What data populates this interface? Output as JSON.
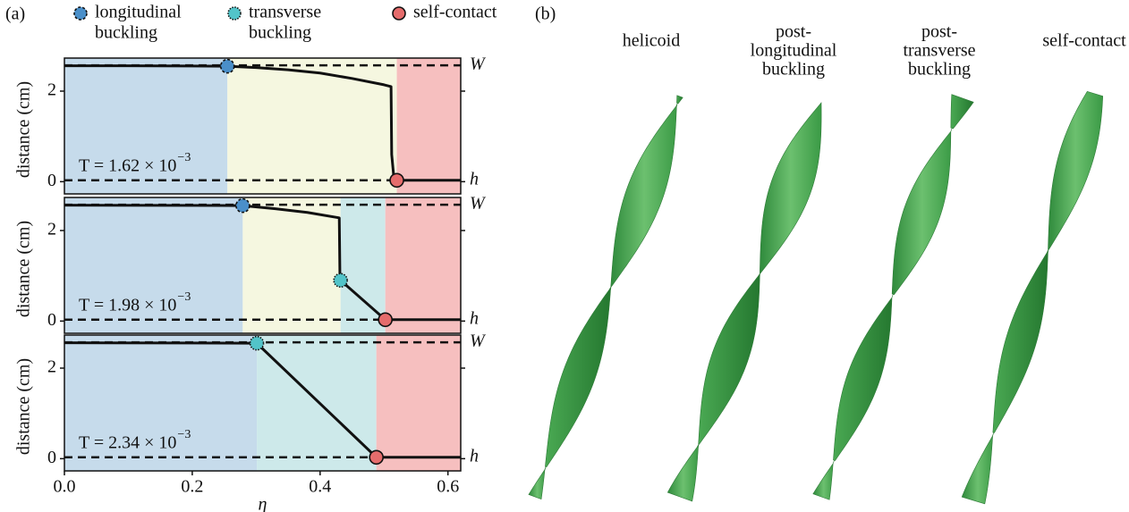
{
  "panel_a_label": "(a)",
  "legend": [
    {
      "lines": [
        "longitudinal",
        "buckling"
      ],
      "color": "#4a8fc9",
      "border": "dashed"
    },
    {
      "lines": [
        "transverse",
        "buckling"
      ],
      "color": "#52c4c9",
      "border": "dotted"
    },
    {
      "lines": [
        "self-contact"
      ],
      "color": "#e56c6c",
      "border": "solid"
    }
  ],
  "chart_data": [
    {
      "type": "line",
      "ylabel": "distance (cm)",
      "xlim": [
        0,
        0.62
      ],
      "ylim": [
        -0.27,
        2.73
      ],
      "yticks": [
        0,
        2
      ],
      "annotation": {
        "base": "T = 1.62 × 10",
        "exponent": "−3"
      },
      "hlines": [
        {
          "value": 2.57,
          "label": "W"
        },
        {
          "value": 0.03,
          "label": "h"
        }
      ],
      "regions": [
        {
          "from": 0,
          "to": 0.255,
          "color": "#c6dbeb"
        },
        {
          "from": 0.255,
          "to": 0.52,
          "color": "#f5f7e0"
        },
        {
          "from": 0.52,
          "to": 0.62,
          "color": "#f6bfbf"
        }
      ],
      "line": {
        "color": "#111111",
        "x": [
          0,
          0.1,
          0.2,
          0.255,
          0.3,
          0.35,
          0.4,
          0.45,
          0.5,
          0.511,
          0.512,
          0.515,
          0.52,
          0.62
        ],
        "y": [
          2.56,
          2.56,
          2.555,
          2.55,
          2.52,
          2.47,
          2.4,
          2.28,
          2.14,
          2.1,
          0.6,
          0.15,
          0.03,
          0.03
        ]
      },
      "points": [
        {
          "x": 0.255,
          "y": 2.55,
          "color": "#4a8fc9",
          "border": "dashed"
        },
        {
          "x": 0.52,
          "y": 0.03,
          "color": "#e56c6c",
          "border": "solid"
        }
      ]
    },
    {
      "type": "line",
      "ylabel": "distance (cm)",
      "xlim": [
        0,
        0.62
      ],
      "ylim": [
        -0.27,
        2.73
      ],
      "yticks": [
        0,
        2
      ],
      "annotation": {
        "base": "T = 1.98 × 10",
        "exponent": "−3"
      },
      "hlines": [
        {
          "value": 2.57,
          "label": "W"
        },
        {
          "value": 0.03,
          "label": "h"
        }
      ],
      "regions": [
        {
          "from": 0,
          "to": 0.279,
          "color": "#c6dbeb"
        },
        {
          "from": 0.279,
          "to": 0.432,
          "color": "#f5f7e0"
        },
        {
          "from": 0.432,
          "to": 0.502,
          "color": "#cde9ea"
        },
        {
          "from": 0.502,
          "to": 0.62,
          "color": "#f6bfbf"
        }
      ],
      "line": {
        "color": "#111111",
        "x": [
          0,
          0.2,
          0.279,
          0.33,
          0.38,
          0.43,
          0.431,
          0.432,
          0.502,
          0.62
        ],
        "y": [
          2.56,
          2.555,
          2.55,
          2.48,
          2.4,
          2.28,
          1.0,
          0.9,
          0.03,
          0.03
        ]
      },
      "points": [
        {
          "x": 0.279,
          "y": 2.55,
          "color": "#4a8fc9",
          "border": "dashed"
        },
        {
          "x": 0.432,
          "y": 0.9,
          "color": "#52c4c9",
          "border": "dotted"
        },
        {
          "x": 0.502,
          "y": 0.03,
          "color": "#e56c6c",
          "border": "solid"
        }
      ]
    },
    {
      "type": "line",
      "ylabel": "distance (cm)",
      "xlabel": "η",
      "xlim": [
        0,
        0.62
      ],
      "ylim": [
        -0.27,
        2.73
      ],
      "yticks": [
        0,
        2
      ],
      "xticks": [
        {
          "value": 0,
          "label": "0.0"
        },
        {
          "value": 0.2,
          "label": "0.2"
        },
        {
          "value": 0.4,
          "label": "0.4"
        },
        {
          "value": 0.6,
          "label": "0.6"
        }
      ],
      "annotation": {
        "base": "T = 2.34 × 10",
        "exponent": "−3"
      },
      "hlines": [
        {
          "value": 2.57,
          "label": "W"
        },
        {
          "value": 0.03,
          "label": "h"
        }
      ],
      "regions": [
        {
          "from": 0,
          "to": 0.301,
          "color": "#c6dbeb"
        },
        {
          "from": 0.301,
          "to": 0.488,
          "color": "#cde9ea"
        },
        {
          "from": 0.488,
          "to": 0.62,
          "color": "#f6bfbf"
        }
      ],
      "line": {
        "color": "#111111",
        "x": [
          0,
          0.2,
          0.301,
          0.488,
          0.62
        ],
        "y": [
          2.56,
          2.555,
          2.55,
          0.03,
          0.03
        ]
      },
      "points": [
        {
          "x": 0.301,
          "y": 2.55,
          "color": "#52c4c9",
          "border": "dotted"
        },
        {
          "x": 0.488,
          "y": 0.03,
          "color": "#e56c6c",
          "border": "solid"
        }
      ]
    }
  ],
  "panel_b": {
    "label": "(b)",
    "ribbons": [
      {
        "lines": [
          "helicoid"
        ]
      },
      {
        "lines": [
          "post-",
          "longitudinal",
          "buckling"
        ]
      },
      {
        "lines": [
          "post-",
          "transverse",
          "buckling"
        ]
      },
      {
        "lines": [
          "self-contact"
        ]
      }
    ]
  }
}
